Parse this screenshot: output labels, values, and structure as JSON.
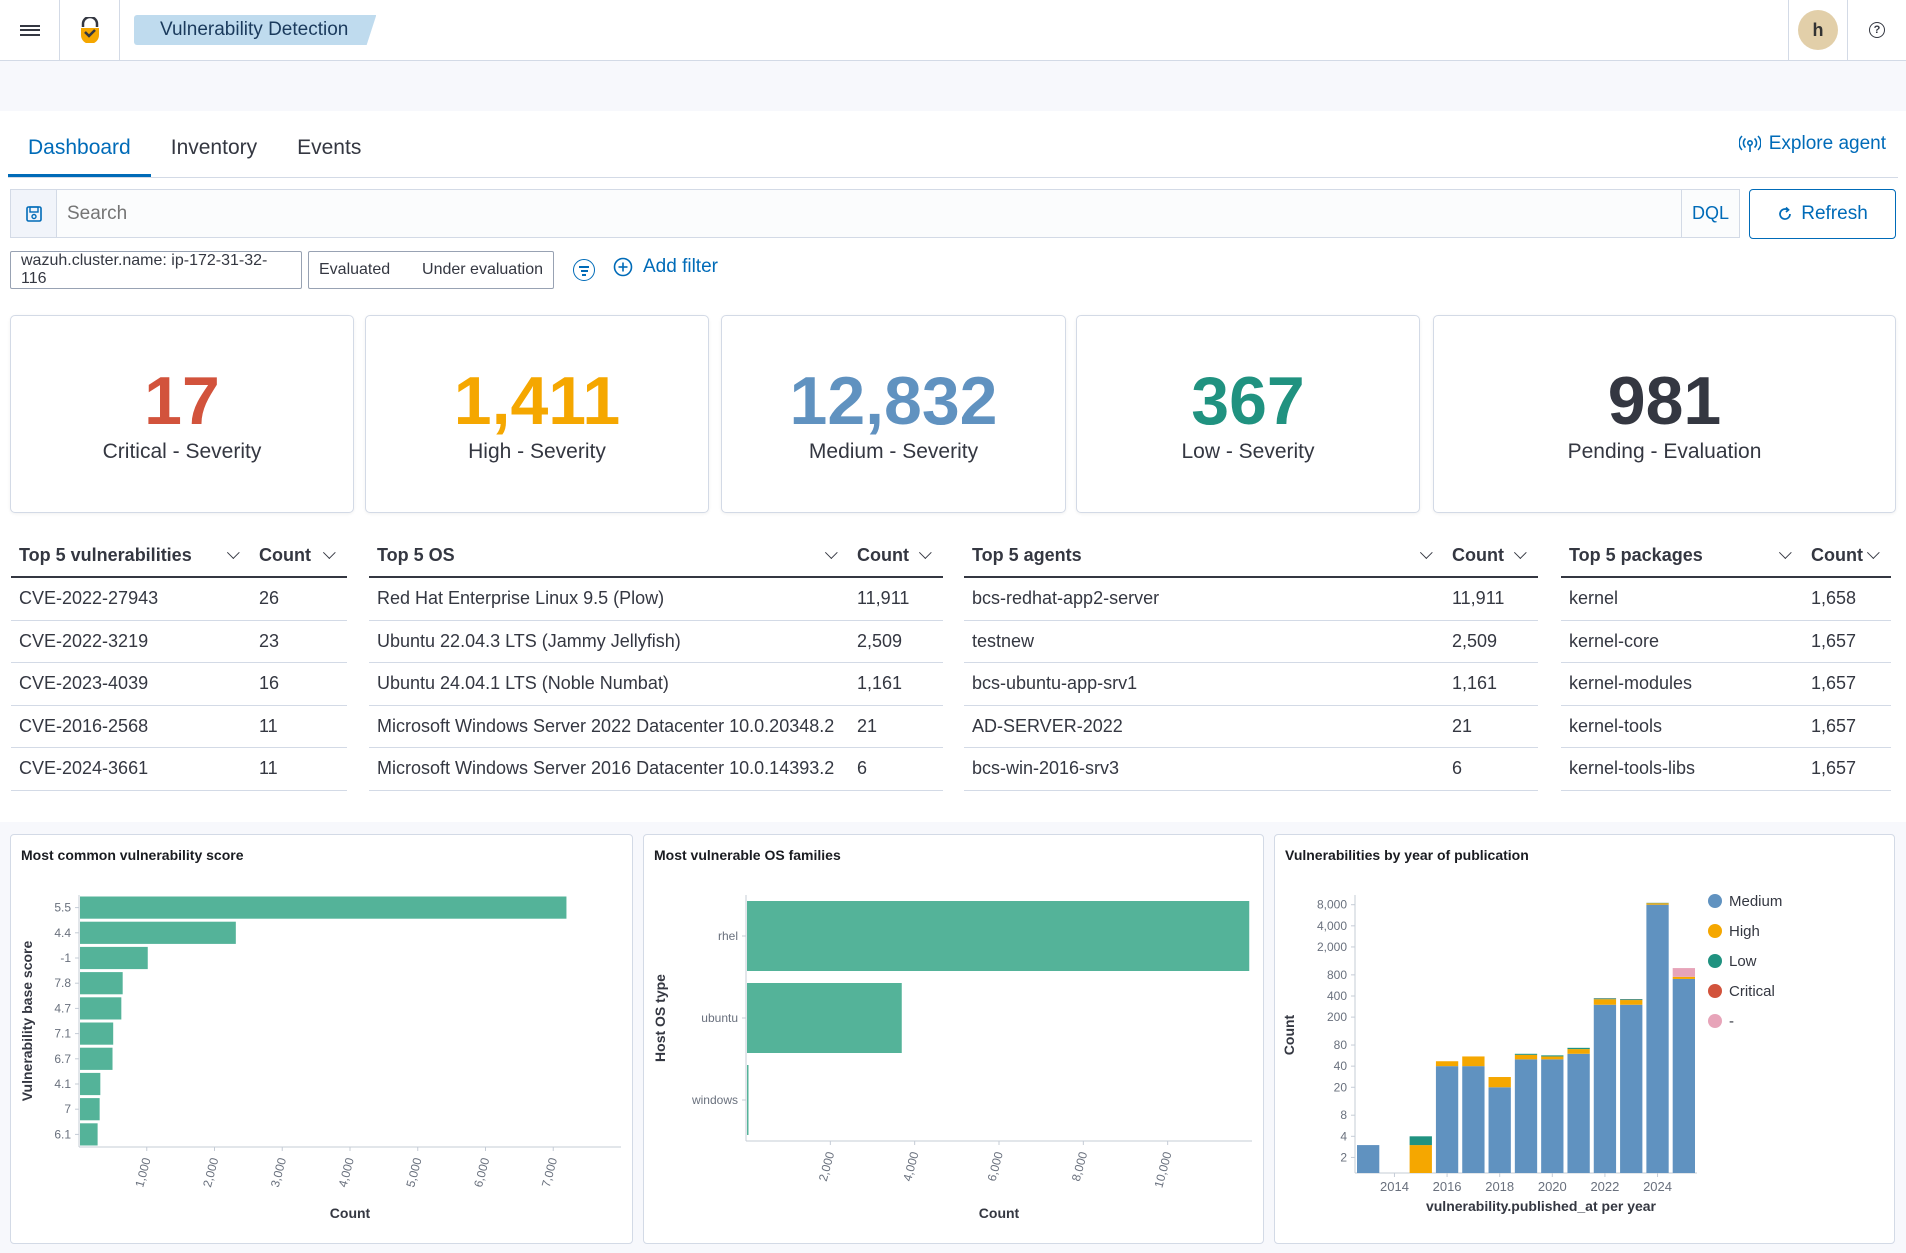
{
  "header": {
    "breadcrumb": "Vulnerability Detection",
    "avatar_letter": "h",
    "help_glyph": "?"
  },
  "tabs": [
    {
      "label": "Dashboard",
      "active": true
    },
    {
      "label": "Inventory",
      "active": false
    },
    {
      "label": "Events",
      "active": false
    }
  ],
  "explore_agent": "Explore agent",
  "search": {
    "placeholder": "Search",
    "dql": "DQL",
    "refresh": "Refresh"
  },
  "filters": {
    "cluster": "wazuh.cluster.name: ip-172-31-32-116",
    "status_a": "Evaluated",
    "status_b": "Under evaluation",
    "add_filter": "Add filter"
  },
  "stats": [
    {
      "value": "17",
      "label": "Critical - Severity",
      "color": "#d2533c"
    },
    {
      "value": "1,411",
      "label": "High - Severity",
      "color": "#f5a700"
    },
    {
      "value": "12,832",
      "label": "Medium - Severity",
      "color": "#6092c0"
    },
    {
      "value": "367",
      "label": "Low - Severity",
      "color": "#209280"
    },
    {
      "value": "981",
      "label": "Pending - Evaluation",
      "color": "#343741"
    }
  ],
  "tables": {
    "vulns": {
      "header": "Top 5 vulnerabilities",
      "count_header": "Count",
      "rows": [
        [
          "CVE-2022-27943",
          "26"
        ],
        [
          "CVE-2022-3219",
          "23"
        ],
        [
          "CVE-2023-4039",
          "16"
        ],
        [
          "CVE-2016-2568",
          "11"
        ],
        [
          "CVE-2024-3661",
          "11"
        ]
      ]
    },
    "os": {
      "header": "Top 5 OS",
      "count_header": "Count",
      "rows": [
        [
          "Red Hat Enterprise Linux 9.5 (Plow)",
          "11,911"
        ],
        [
          "Ubuntu 22.04.3 LTS (Jammy Jellyfish)",
          "2,509"
        ],
        [
          "Ubuntu 24.04.1 LTS (Noble Numbat)",
          "1,161"
        ],
        [
          "Microsoft Windows Server 2022 Datacenter 10.0.20348.2",
          "21"
        ],
        [
          "Microsoft Windows Server 2016 Datacenter 10.0.14393.2",
          "6"
        ]
      ]
    },
    "agents": {
      "header": "Top 5 agents",
      "count_header": "Count",
      "rows": [
        [
          "bcs-redhat-app2-server",
          "11,911"
        ],
        [
          "testnew",
          "2,509"
        ],
        [
          "bcs-ubuntu-app-srv1",
          "1,161"
        ],
        [
          "AD-SERVER-2022",
          "21"
        ],
        [
          "bcs-win-2016-srv3",
          "6"
        ]
      ]
    },
    "packages": {
      "header": "Top 5 packages",
      "count_header": "Count",
      "rows": [
        [
          "kernel",
          "1,658"
        ],
        [
          "kernel-core",
          "1,657"
        ],
        [
          "kernel-modules",
          "1,657"
        ],
        [
          "kernel-tools",
          "1,657"
        ],
        [
          "kernel-tools-libs",
          "1,657"
        ]
      ]
    }
  },
  "chart_data": [
    {
      "type": "bar",
      "orientation": "horizontal",
      "title": "Most common vulnerability score",
      "xlabel": "Count",
      "ylabel": "Vulnerability base score",
      "categories": [
        "5.5",
        "4.4",
        "-1",
        "7.8",
        "4.7",
        "7.1",
        "6.7",
        "4.1",
        "7",
        "6.1"
      ],
      "values": [
        7180,
        2300,
        1000,
        630,
        610,
        490,
        480,
        300,
        290,
        260
      ],
      "xticks": [
        "1,000",
        "2,000",
        "3,000",
        "4,000",
        "5,000",
        "6,000",
        "7,000"
      ],
      "xlim": [
        0,
        8000
      ],
      "color": "#54b399"
    },
    {
      "type": "bar",
      "orientation": "horizontal",
      "title": "Most vulnerable OS families",
      "xlabel": "Count",
      "ylabel": "Host OS type",
      "categories": [
        "rhel",
        "ubuntu",
        "windows"
      ],
      "values": [
        11911,
        3670,
        27
      ],
      "xticks": [
        "2,000",
        "4,000",
        "6,000",
        "8,000",
        "10,000"
      ],
      "xlim": [
        0,
        12000
      ],
      "color": "#54b399"
    },
    {
      "type": "bar",
      "stacked": true,
      "yscale": "log",
      "title": "Vulnerabilities by year of publication",
      "xlabel": "vulnerability.published_at per year",
      "ylabel": "Count",
      "categories": [
        "2013",
        "2014",
        "2015",
        "2016",
        "2017",
        "2018",
        "2019",
        "2020",
        "2021",
        "2022",
        "2023",
        "2024",
        "2025"
      ],
      "xticks": [
        "2014",
        "2016",
        "2018",
        "2020",
        "2022",
        "2024"
      ],
      "yticks": [
        "2",
        "4",
        "8",
        "20",
        "40",
        "80",
        "200",
        "400",
        "800",
        "2,000",
        "4,000",
        "8,000"
      ],
      "series": [
        {
          "name": "Medium",
          "color": "#6092c0",
          "values": [
            3,
            0,
            0,
            40,
            40,
            20,
            50,
            50,
            60,
            300,
            300,
            8000,
            700
          ]
        },
        {
          "name": "High",
          "color": "#f5a700",
          "values": [
            0,
            0,
            3,
            7,
            15,
            8,
            8,
            5,
            10,
            60,
            50,
            400,
            50
          ]
        },
        {
          "name": "Low",
          "color": "#209280",
          "values": [
            0,
            0,
            1,
            0,
            0,
            0,
            2,
            2,
            3,
            10,
            10,
            100,
            0
          ]
        },
        {
          "name": "Critical",
          "color": "#d2533c",
          "values": [
            0,
            0,
            0,
            0,
            0,
            0,
            0,
            0,
            0,
            2,
            2,
            10,
            0
          ]
        },
        {
          "name": "-",
          "color": "#e7a4b9",
          "values": [
            0,
            0,
            0,
            0,
            0,
            0,
            0,
            0,
            0,
            0,
            0,
            0,
            250
          ]
        }
      ]
    }
  ]
}
